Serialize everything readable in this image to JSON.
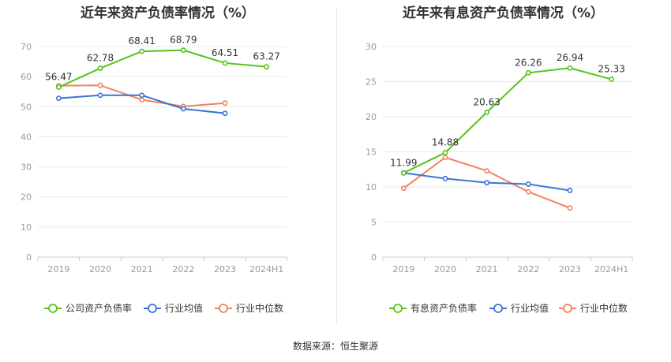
{
  "chart_data": [
    {
      "type": "line",
      "title": "近年来资产负债率情况（%）",
      "categories": [
        "2019",
        "2020",
        "2021",
        "2022",
        "2023",
        "2024H1"
      ],
      "ylim": [
        0,
        70
      ],
      "yticks": [
        0,
        10,
        20,
        30,
        40,
        50,
        60,
        70
      ],
      "grid": true,
      "legend_position": "bottom",
      "series": [
        {
          "name": "公司资产负债率",
          "color": "#52c41a",
          "values": [
            56.47,
            62.78,
            68.41,
            68.79,
            64.51,
            63.27
          ],
          "labels": [
            "56.47",
            "62.78",
            "68.41",
            "68.79",
            "64.51",
            "63.27"
          ]
        },
        {
          "name": "行业均值",
          "color": "#3a75d6",
          "values": [
            52.8,
            53.8,
            53.8,
            49.3,
            47.8,
            null
          ]
        },
        {
          "name": "行业中位数",
          "color": "#f0835e",
          "values": [
            57.0,
            57.1,
            52.3,
            50.1,
            51.2,
            null
          ]
        }
      ]
    },
    {
      "type": "line",
      "title": "近年来有息资产负债率情况（%）",
      "categories": [
        "2019",
        "2020",
        "2021",
        "2022",
        "2023",
        "2024H1"
      ],
      "ylim": [
        0,
        30
      ],
      "yticks": [
        0,
        5,
        10,
        15,
        20,
        25,
        30
      ],
      "grid": true,
      "legend_position": "bottom",
      "series": [
        {
          "name": "有息资产负债率",
          "color": "#52c41a",
          "values": [
            11.99,
            14.88,
            20.63,
            26.26,
            26.94,
            25.33
          ],
          "labels": [
            "11.99",
            "14.88",
            "20.63",
            "26.26",
            "26.94",
            "25.33"
          ]
        },
        {
          "name": "行业均值",
          "color": "#3a75d6",
          "values": [
            12.0,
            11.2,
            10.6,
            10.4,
            9.5,
            null
          ]
        },
        {
          "name": "行业中位数",
          "color": "#f0835e",
          "values": [
            9.8,
            14.2,
            12.3,
            9.3,
            7.0,
            null
          ]
        }
      ]
    }
  ],
  "footer": {
    "source": "数据来源：恒生聚源"
  }
}
